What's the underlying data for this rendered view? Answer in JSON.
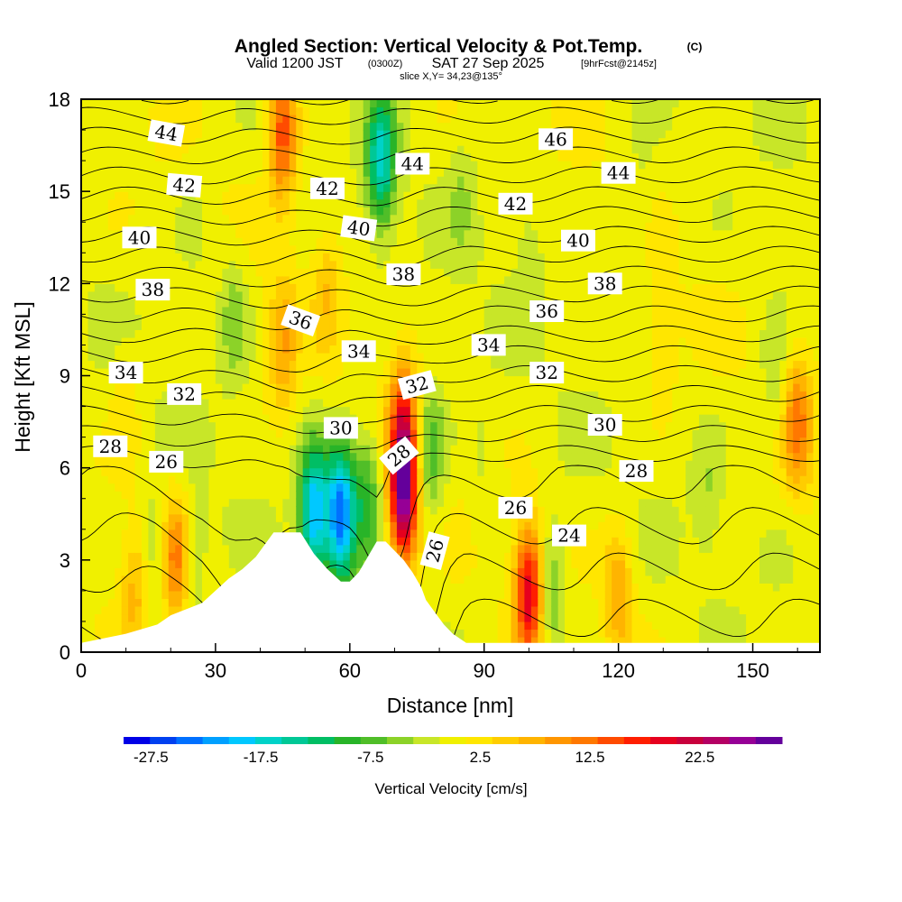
{
  "chart_data": {
    "type": "heatmap",
    "title": "Angled Section: Vertical Velocity & Pot.Temp.",
    "title_mark": "(C)",
    "subtitle": {
      "prefix": "Valid 1200 JST",
      "utc": "(0300Z)",
      "date": "SAT 27 Sep 2025",
      "forecast": "[9hrFcst@2145z]"
    },
    "slice_label": "slice X,Y= 34,23@135°",
    "xlabel": "Distance [nm]",
    "ylabel": "Height [Kft MSL]",
    "xlim": [
      0,
      165
    ],
    "ylim": [
      0,
      18
    ],
    "x_ticks": [
      "0",
      "30",
      "60",
      "90",
      "120",
      "150"
    ],
    "y_ticks": [
      "0",
      "3",
      "6",
      "9",
      "12",
      "15",
      "18"
    ],
    "colorbar": {
      "label": "Vertical Velocity [cm/s]",
      "tick_labels": [
        "-27.5",
        "-17.5",
        "-7.5",
        "2.5",
        "12.5",
        "22.5"
      ],
      "tick_values": [
        -27.5,
        -17.5,
        -7.5,
        2.5,
        12.5,
        22.5
      ],
      "min": -30,
      "max": 30,
      "colors": [
        "#0000e6",
        "#0040f0",
        "#0070ff",
        "#00a0ff",
        "#00c8ff",
        "#00d2c8",
        "#00c896",
        "#00be64",
        "#28b428",
        "#50be28",
        "#8cd228",
        "#c8e628",
        "#f0f000",
        "#ffe600",
        "#ffcd00",
        "#ffb400",
        "#ff9600",
        "#ff7800",
        "#ff4b00",
        "#ff1e00",
        "#e6001e",
        "#c8003c",
        "#b40064",
        "#960096",
        "#64009b"
      ]
    },
    "terrain_profile": {
      "x": [
        0,
        10,
        17,
        20,
        27,
        30,
        33,
        36,
        39,
        43,
        49,
        52,
        55,
        58,
        60,
        62,
        64,
        66,
        68,
        72,
        74,
        76,
        77,
        79,
        81,
        83,
        86,
        165
      ],
      "y": [
        0.3,
        0.6,
        0.9,
        1.2,
        1.6,
        2.0,
        2.4,
        2.7,
        3.1,
        3.9,
        3.9,
        3.2,
        2.7,
        2.3,
        2.3,
        2.6,
        3.1,
        3.6,
        3.6,
        3.0,
        2.6,
        2.1,
        1.7,
        1.3,
        0.9,
        0.6,
        0.3,
        0.3
      ]
    },
    "velocity_features": [
      {
        "x": 45,
        "y": 17,
        "value": 15
      },
      {
        "x": 34,
        "y": 11,
        "value": -5
      },
      {
        "x": 45,
        "y": 10,
        "value": 8
      },
      {
        "x": 67,
        "y": 16,
        "value": -16
      },
      {
        "x": 58,
        "y": 4.5,
        "value": -24
      },
      {
        "x": 52,
        "y": 4.5,
        "value": -20
      },
      {
        "x": 64,
        "y": 5,
        "value": -9
      },
      {
        "x": 72,
        "y": 5,
        "value": 25
      },
      {
        "x": 72,
        "y": 7.5,
        "value": 14
      },
      {
        "x": 78,
        "y": 6.5,
        "value": -8
      },
      {
        "x": 100,
        "y": 2,
        "value": 20
      },
      {
        "x": 105,
        "y": 2,
        "value": -7
      },
      {
        "x": 21,
        "y": 3,
        "value": 12
      },
      {
        "x": 17,
        "y": 3,
        "value": -5
      },
      {
        "x": 25,
        "y": 3,
        "value": -4
      },
      {
        "x": 12,
        "y": 2,
        "value": 6
      },
      {
        "x": 120,
        "y": 2,
        "value": 8
      },
      {
        "x": 160,
        "y": 7.5,
        "value": 11
      },
      {
        "x": 155,
        "y": 9,
        "value": -4
      },
      {
        "x": 100,
        "y": 13,
        "value": -3
      },
      {
        "x": 85,
        "y": 15,
        "value": -3
      },
      {
        "x": 125,
        "y": 15,
        "value": -2
      },
      {
        "x": 25,
        "y": 14,
        "value": -2
      },
      {
        "x": 10,
        "y": 8,
        "value": 3
      },
      {
        "x": 140,
        "y": 5,
        "value": -3
      },
      {
        "x": 55,
        "y": 12,
        "value": 5
      },
      {
        "x": 90,
        "y": 6,
        "value": -2
      },
      {
        "x": 130,
        "y": 10,
        "value": 3
      }
    ],
    "theta_contour_levels": [
      24,
      25,
      26,
      27,
      28,
      29,
      30,
      31,
      32,
      33,
      34,
      35,
      36,
      37,
      38,
      39,
      40,
      41,
      42,
      43,
      44,
      45,
      46
    ],
    "contour_labels": [
      {
        "text": "44",
        "x": 19,
        "y": 16.9,
        "angle": 10
      },
      {
        "text": "42",
        "x": 23,
        "y": 15.2,
        "angle": 5
      },
      {
        "text": "40",
        "x": 13,
        "y": 13.5,
        "angle": 0
      },
      {
        "text": "38",
        "x": 16,
        "y": 11.8,
        "angle": 0
      },
      {
        "text": "34",
        "x": 10,
        "y": 9.1,
        "angle": 0
      },
      {
        "text": "32",
        "x": 23,
        "y": 8.4,
        "angle": 0
      },
      {
        "text": "28",
        "x": 6.5,
        "y": 6.7,
        "angle": 0
      },
      {
        "text": "26",
        "x": 19,
        "y": 6.2,
        "angle": 0
      },
      {
        "text": "42",
        "x": 55,
        "y": 15.1,
        "angle": 0
      },
      {
        "text": "40",
        "x": 62,
        "y": 13.8,
        "angle": 8
      },
      {
        "text": "36",
        "x": 49,
        "y": 10.8,
        "angle": 20
      },
      {
        "text": "34",
        "x": 62,
        "y": 9.8,
        "angle": 0
      },
      {
        "text": "30",
        "x": 58,
        "y": 7.3,
        "angle": 0
      },
      {
        "text": "44",
        "x": 74,
        "y": 15.9,
        "angle": 0
      },
      {
        "text": "38",
        "x": 72,
        "y": 12.3,
        "angle": 0
      },
      {
        "text": "32",
        "x": 75,
        "y": 8.7,
        "angle": -15
      },
      {
        "text": "28",
        "x": 71,
        "y": 6.4,
        "angle": -40
      },
      {
        "text": "26",
        "x": 79,
        "y": 3.3,
        "angle": -75
      },
      {
        "text": "46",
        "x": 106,
        "y": 16.7,
        "angle": 0
      },
      {
        "text": "42",
        "x": 97,
        "y": 14.6,
        "angle": 0
      },
      {
        "text": "34",
        "x": 91,
        "y": 10.0,
        "angle": 0
      },
      {
        "text": "36",
        "x": 104,
        "y": 11.1,
        "angle": 0
      },
      {
        "text": "32",
        "x": 104,
        "y": 9.1,
        "angle": 0
      },
      {
        "text": "26",
        "x": 97,
        "y": 4.7,
        "angle": 0
      },
      {
        "text": "24",
        "x": 109,
        "y": 3.8,
        "angle": 0
      },
      {
        "text": "44",
        "x": 120,
        "y": 15.6,
        "angle": 0
      },
      {
        "text": "40",
        "x": 111,
        "y": 13.4,
        "angle": 0
      },
      {
        "text": "38",
        "x": 117,
        "y": 12.0,
        "angle": 0
      },
      {
        "text": "30",
        "x": 117,
        "y": 7.4,
        "angle": 0
      },
      {
        "text": "28",
        "x": 124,
        "y": 5.9,
        "angle": 0
      }
    ]
  }
}
